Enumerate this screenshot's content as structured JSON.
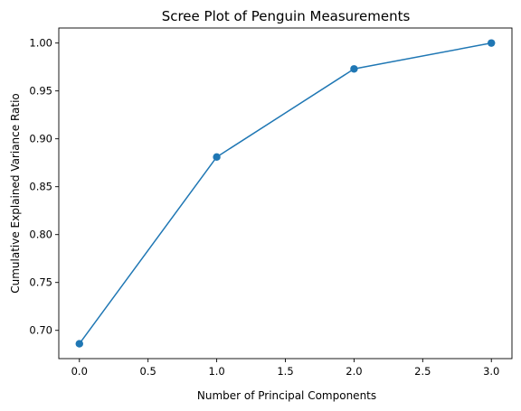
{
  "chart_data": {
    "type": "line",
    "title": "Scree Plot of Penguin Measurements",
    "xlabel": "Number of Principal Components",
    "ylabel": "Cumulative Explained Variance Ratio",
    "x": [
      0,
      1,
      2,
      3
    ],
    "series": [
      {
        "values": [
          0.686,
          0.881,
          0.973,
          1.0
        ]
      }
    ],
    "xlim": [
      -0.15,
      3.15
    ],
    "ylim": [
      0.6705,
      1.0157
    ],
    "xticks": [
      0.0,
      0.5,
      1.0,
      1.5,
      2.0,
      2.5,
      3.0
    ],
    "xtick_labels": [
      "0.0",
      "0.5",
      "1.0",
      "1.5",
      "2.0",
      "2.5",
      "3.0"
    ],
    "yticks": [
      0.7,
      0.75,
      0.8,
      0.85,
      0.9,
      0.95,
      1.0
    ],
    "ytick_labels": [
      "0.70",
      "0.75",
      "0.80",
      "0.85",
      "0.90",
      "0.95",
      "1.00"
    ],
    "marker": "circle",
    "grid": false,
    "color": "#1f77b4"
  }
}
